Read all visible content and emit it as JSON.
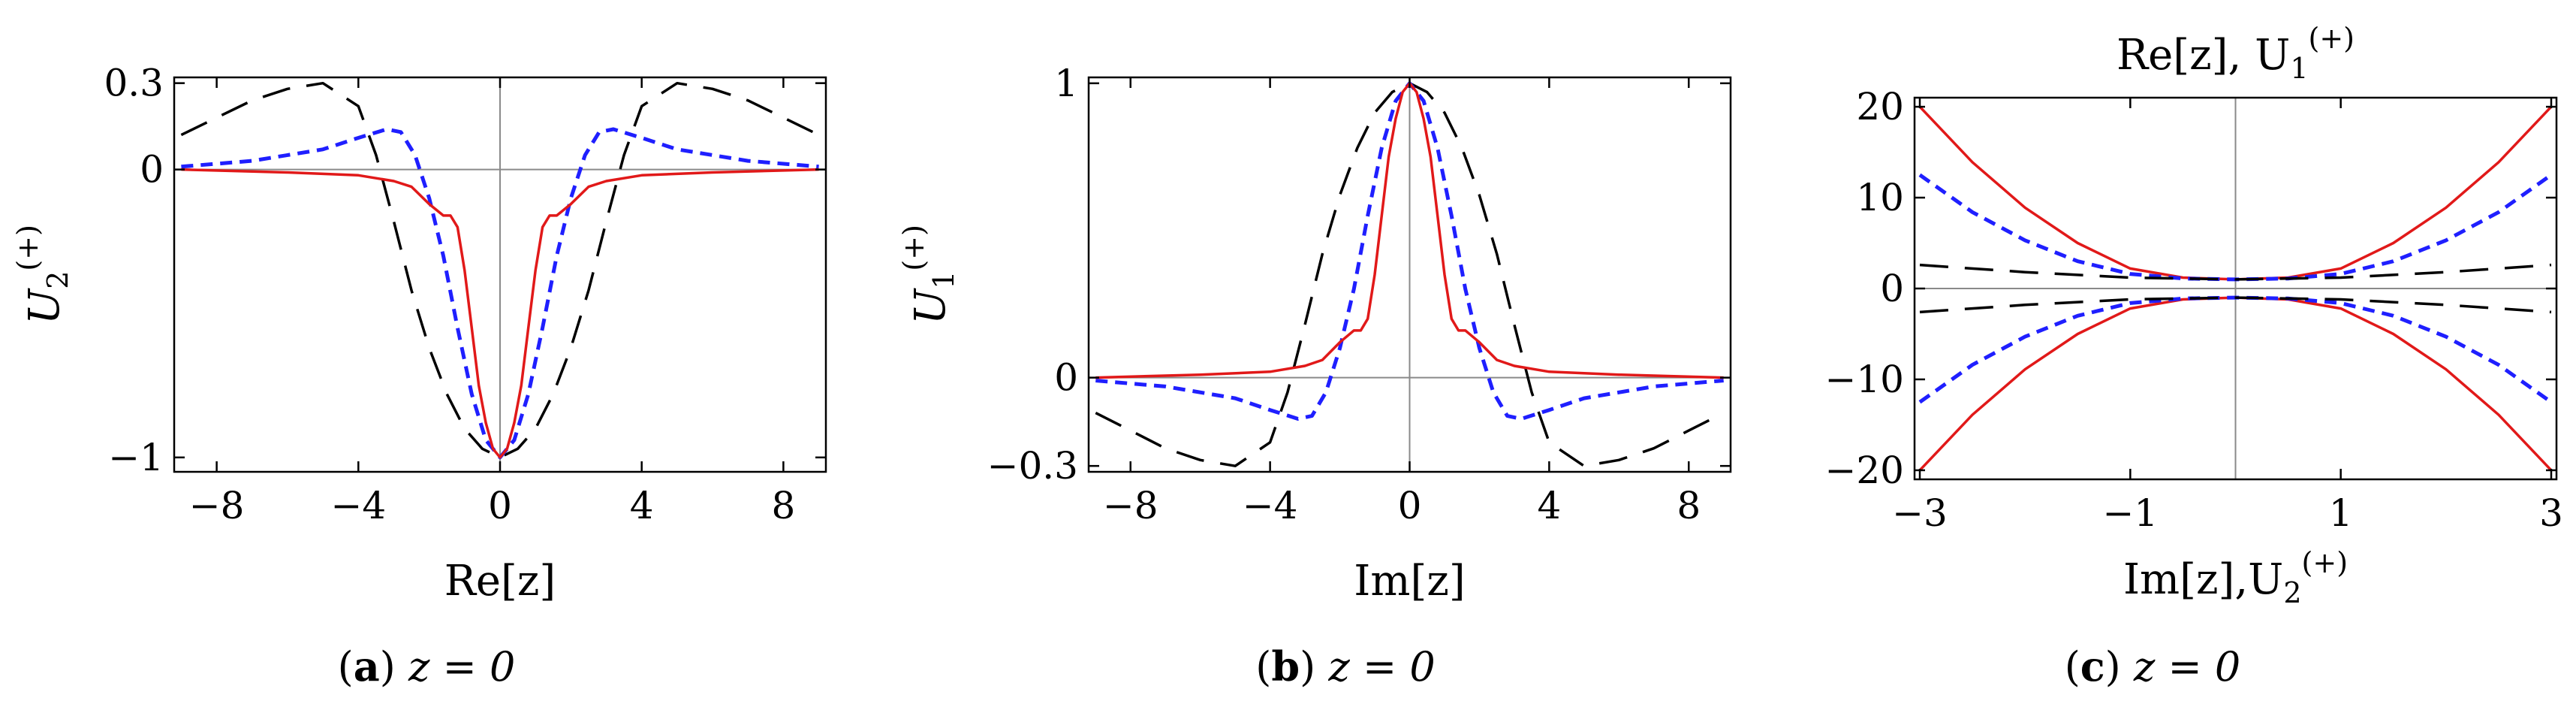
{
  "chart_data": [
    {
      "type": "line",
      "ylabel": "U",
      "ylabel_sub": "2",
      "ylabel_sup": "(+)",
      "xlabel": "Re[z]",
      "xlim": [
        -9.2,
        9.2
      ],
      "ylim": [
        -1.05,
        0.32
      ],
      "xticks": [
        -8,
        -4,
        0,
        4,
        8
      ],
      "xtick_labels": [
        "−8",
        "−4",
        "0",
        "4",
        "8"
      ],
      "yticks": [
        0.3,
        0,
        -1
      ],
      "ytick_labels": [
        "0.3",
        "0",
        "−1"
      ],
      "caption_letter": "a",
      "caption_rest": " z = 0",
      "series": [
        {
          "color": "#000000",
          "style": "long-dash",
          "points": [
            [
              -9,
              0.12
            ],
            [
              -8,
              0.18
            ],
            [
              -7,
              0.24
            ],
            [
              -6,
              0.28
            ],
            [
              -5,
              0.3
            ],
            [
              -4,
              0.22
            ],
            [
              -3.5,
              0.05
            ],
            [
              -3,
              -0.18
            ],
            [
              -2.5,
              -0.42
            ],
            [
              -2,
              -0.62
            ],
            [
              -1.5,
              -0.78
            ],
            [
              -1,
              -0.9
            ],
            [
              -0.5,
              -0.97
            ],
            [
              0,
              -1
            ],
            [
              0.5,
              -0.97
            ],
            [
              1,
              -0.9
            ],
            [
              1.5,
              -0.78
            ],
            [
              2,
              -0.62
            ],
            [
              2.5,
              -0.42
            ],
            [
              3,
              -0.18
            ],
            [
              3.5,
              0.05
            ],
            [
              4,
              0.22
            ],
            [
              5,
              0.3
            ],
            [
              6,
              0.28
            ],
            [
              7,
              0.24
            ],
            [
              8,
              0.18
            ],
            [
              9,
              0.12
            ]
          ]
        },
        {
          "color": "#1f1fff",
          "style": "short-dash",
          "points": [
            [
              -9,
              0.01
            ],
            [
              -7,
              0.03
            ],
            [
              -5,
              0.07
            ],
            [
              -4,
              0.11
            ],
            [
              -3.2,
              0.14
            ],
            [
              -2.8,
              0.13
            ],
            [
              -2.4,
              0.05
            ],
            [
              -2,
              -0.1
            ],
            [
              -1.6,
              -0.3
            ],
            [
              -1.2,
              -0.55
            ],
            [
              -0.8,
              -0.78
            ],
            [
              -0.4,
              -0.94
            ],
            [
              0,
              -1
            ],
            [
              0.4,
              -0.94
            ],
            [
              0.8,
              -0.78
            ],
            [
              1.2,
              -0.55
            ],
            [
              1.6,
              -0.3
            ],
            [
              2,
              -0.1
            ],
            [
              2.4,
              0.05
            ],
            [
              2.8,
              0.13
            ],
            [
              3.2,
              0.14
            ],
            [
              4,
              0.11
            ],
            [
              5,
              0.07
            ],
            [
              7,
              0.03
            ],
            [
              9,
              0.01
            ]
          ]
        },
        {
          "color": "#e11919",
          "style": "solid",
          "points": [
            [
              -9,
              0
            ],
            [
              -6,
              -0.01
            ],
            [
              -4,
              -0.02
            ],
            [
              -3,
              -0.04
            ],
            [
              -2.5,
              -0.06
            ],
            [
              -2,
              -0.12
            ],
            [
              -1.6,
              -0.16
            ],
            [
              -1.4,
              -0.16
            ],
            [
              -1.2,
              -0.2
            ],
            [
              -1,
              -0.35
            ],
            [
              -0.8,
              -0.55
            ],
            [
              -0.6,
              -0.75
            ],
            [
              -0.4,
              -0.88
            ],
            [
              -0.2,
              -0.97
            ],
            [
              0,
              -1
            ],
            [
              0.2,
              -0.97
            ],
            [
              0.4,
              -0.88
            ],
            [
              0.6,
              -0.75
            ],
            [
              0.8,
              -0.55
            ],
            [
              1,
              -0.35
            ],
            [
              1.2,
              -0.2
            ],
            [
              1.4,
              -0.16
            ],
            [
              1.6,
              -0.16
            ],
            [
              2,
              -0.12
            ],
            [
              2.5,
              -0.06
            ],
            [
              3,
              -0.04
            ],
            [
              4,
              -0.02
            ],
            [
              6,
              -0.01
            ],
            [
              9,
              0
            ]
          ]
        }
      ]
    },
    {
      "type": "line",
      "ylabel": "U",
      "ylabel_sub": "1",
      "ylabel_sup": "(+)",
      "xlabel": "Im[z]",
      "xlim": [
        -9.2,
        9.2
      ],
      "ylim": [
        -0.32,
        1.02
      ],
      "xticks": [
        -8,
        -4,
        0,
        4,
        8
      ],
      "xtick_labels": [
        "−8",
        "−4",
        "0",
        "4",
        "8"
      ],
      "yticks": [
        1,
        0,
        -0.3
      ],
      "ytick_labels": [
        "1",
        "0",
        "−0.3"
      ],
      "caption_letter": "b",
      "caption_rest": " z = 0",
      "series": [
        {
          "color": "#000000",
          "style": "long-dash",
          "points": [
            [
              -9,
              -0.12
            ],
            [
              -8,
              -0.18
            ],
            [
              -7,
              -0.24
            ],
            [
              -6,
              -0.28
            ],
            [
              -5,
              -0.3
            ],
            [
              -4,
              -0.22
            ],
            [
              -3.5,
              -0.05
            ],
            [
              -3,
              0.18
            ],
            [
              -2.5,
              0.42
            ],
            [
              -2,
              0.62
            ],
            [
              -1.5,
              0.78
            ],
            [
              -1,
              0.9
            ],
            [
              -0.5,
              0.97
            ],
            [
              0,
              1
            ],
            [
              0.5,
              0.97
            ],
            [
              1,
              0.9
            ],
            [
              1.5,
              0.78
            ],
            [
              2,
              0.62
            ],
            [
              2.5,
              0.42
            ],
            [
              3,
              0.18
            ],
            [
              3.5,
              -0.05
            ],
            [
              4,
              -0.22
            ],
            [
              5,
              -0.3
            ],
            [
              6,
              -0.28
            ],
            [
              7,
              -0.24
            ],
            [
              8,
              -0.18
            ],
            [
              9,
              -0.12
            ]
          ]
        },
        {
          "color": "#1f1fff",
          "style": "short-dash",
          "points": [
            [
              -9,
              -0.01
            ],
            [
              -7,
              -0.03
            ],
            [
              -5,
              -0.07
            ],
            [
              -4,
              -0.11
            ],
            [
              -3.2,
              -0.14
            ],
            [
              -2.8,
              -0.13
            ],
            [
              -2.4,
              -0.05
            ],
            [
              -2,
              0.1
            ],
            [
              -1.6,
              0.3
            ],
            [
              -1.2,
              0.55
            ],
            [
              -0.8,
              0.78
            ],
            [
              -0.4,
              0.94
            ],
            [
              0,
              1
            ],
            [
              0.4,
              0.94
            ],
            [
              0.8,
              0.78
            ],
            [
              1.2,
              0.55
            ],
            [
              1.6,
              0.3
            ],
            [
              2,
              0.1
            ],
            [
              2.4,
              -0.05
            ],
            [
              2.8,
              -0.13
            ],
            [
              3.2,
              -0.14
            ],
            [
              4,
              -0.11
            ],
            [
              5,
              -0.07
            ],
            [
              7,
              -0.03
            ],
            [
              9,
              -0.01
            ]
          ]
        },
        {
          "color": "#e11919",
          "style": "solid",
          "points": [
            [
              -9,
              0
            ],
            [
              -6,
              0.01
            ],
            [
              -4,
              0.02
            ],
            [
              -3,
              0.04
            ],
            [
              -2.5,
              0.06
            ],
            [
              -2,
              0.12
            ],
            [
              -1.6,
              0.16
            ],
            [
              -1.4,
              0.16
            ],
            [
              -1.2,
              0.2
            ],
            [
              -1,
              0.35
            ],
            [
              -0.8,
              0.55
            ],
            [
              -0.6,
              0.75
            ],
            [
              -0.4,
              0.88
            ],
            [
              -0.2,
              0.97
            ],
            [
              0,
              1
            ],
            [
              0.2,
              0.97
            ],
            [
              0.4,
              0.88
            ],
            [
              0.6,
              0.75
            ],
            [
              0.8,
              0.55
            ],
            [
              1,
              0.35
            ],
            [
              1.2,
              0.2
            ],
            [
              1.4,
              0.16
            ],
            [
              1.6,
              0.16
            ],
            [
              2,
              0.12
            ],
            [
              2.5,
              0.06
            ],
            [
              3,
              0.04
            ],
            [
              4,
              0.02
            ],
            [
              6,
              0.01
            ],
            [
              9,
              0
            ]
          ]
        }
      ]
    },
    {
      "type": "line",
      "title": "Re[z], U",
      "title_sub": "1",
      "title_sup": "(+)",
      "xlabel": "Im[z],U",
      "xlabel_sub": "2",
      "xlabel_sup": "(+)",
      "xlim": [
        -3.05,
        3.05
      ],
      "ylim": [
        -21,
        21
      ],
      "xticks": [
        -3,
        -1,
        1,
        3
      ],
      "xtick_labels": [
        "−3",
        "−1",
        "1",
        "3"
      ],
      "yticks": [
        20,
        10,
        0,
        -10,
        -20
      ],
      "ytick_labels": [
        "20",
        "10",
        "0",
        "−10",
        "−20"
      ],
      "caption_letter": "c",
      "caption_rest": " z = 0",
      "series": [
        {
          "color": "#e11919",
          "style": "solid",
          "points": [
            [
              -3,
              20
            ],
            [
              -2.5,
              13.9
            ],
            [
              -2,
              8.9
            ],
            [
              -1.5,
              5
            ],
            [
              -1,
              2.2
            ],
            [
              -0.5,
              1.2
            ],
            [
              0,
              1
            ],
            [
              0.5,
              1.2
            ],
            [
              1,
              2.2
            ],
            [
              1.5,
              5
            ],
            [
              2,
              8.9
            ],
            [
              2.5,
              13.9
            ],
            [
              3,
              20
            ]
          ]
        },
        {
          "color": "#e11919",
          "style": "solid",
          "points": [
            [
              -3,
              -20
            ],
            [
              -2.5,
              -13.9
            ],
            [
              -2,
              -8.9
            ],
            [
              -1.5,
              -5
            ],
            [
              -1,
              -2.2
            ],
            [
              -0.5,
              -1.2
            ],
            [
              0,
              -1
            ],
            [
              0.5,
              -1.2
            ],
            [
              1,
              -2.2
            ],
            [
              1.5,
              -5
            ],
            [
              2,
              -8.9
            ],
            [
              2.5,
              -13.9
            ],
            [
              3,
              -20
            ]
          ]
        },
        {
          "color": "#1f1fff",
          "style": "short-dash",
          "points": [
            [
              -3,
              12.5
            ],
            [
              -2.5,
              8.4
            ],
            [
              -2,
              5.3
            ],
            [
              -1.5,
              3
            ],
            [
              -1,
              1.6
            ],
            [
              -0.5,
              1.1
            ],
            [
              0,
              1
            ],
            [
              0.5,
              1.1
            ],
            [
              1,
              1.6
            ],
            [
              1.5,
              3
            ],
            [
              2,
              5.3
            ],
            [
              2.5,
              8.4
            ],
            [
              3,
              12.5
            ]
          ]
        },
        {
          "color": "#1f1fff",
          "style": "short-dash",
          "points": [
            [
              -3,
              -12.5
            ],
            [
              -2.5,
              -8.4
            ],
            [
              -2,
              -5.3
            ],
            [
              -1.5,
              -3
            ],
            [
              -1,
              -1.6
            ],
            [
              -0.5,
              -1.1
            ],
            [
              0,
              -1
            ],
            [
              0.5,
              -1.1
            ],
            [
              1,
              -1.6
            ],
            [
              1.5,
              -3
            ],
            [
              2,
              -5.3
            ],
            [
              2.5,
              -8.4
            ],
            [
              3,
              -12.5
            ]
          ]
        },
        {
          "color": "#000000",
          "style": "long-dash",
          "points": [
            [
              -3,
              2.6
            ],
            [
              -2,
              1.8
            ],
            [
              -1,
              1.2
            ],
            [
              0,
              1
            ],
            [
              1,
              1.2
            ],
            [
              2,
              1.8
            ],
            [
              3,
              2.6
            ]
          ]
        },
        {
          "color": "#000000",
          "style": "long-dash",
          "points": [
            [
              -3,
              -2.6
            ],
            [
              -2,
              -1.8
            ],
            [
              -1,
              -1.2
            ],
            [
              0,
              -1
            ],
            [
              1,
              -1.2
            ],
            [
              2,
              -1.8
            ],
            [
              3,
              -2.6
            ]
          ]
        }
      ]
    }
  ]
}
